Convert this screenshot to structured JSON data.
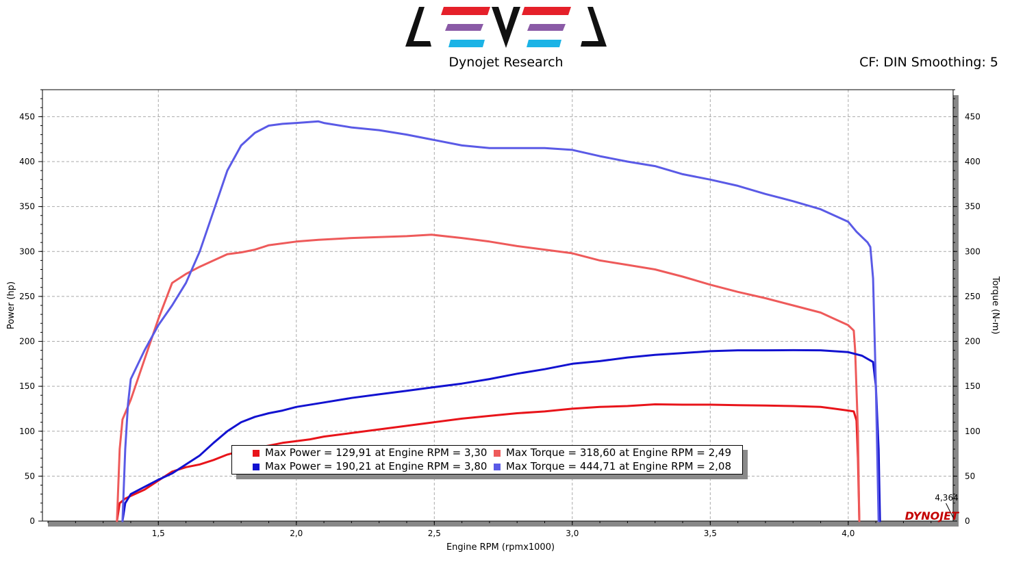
{
  "header": {
    "brand": "Dynojet Research",
    "settings": "CF: DIN Smoothing: 5"
  },
  "colors": {
    "run1": "#e8141a",
    "run1_torque": "#ee5a5a",
    "run2": "#1212d0",
    "run2_torque": "#5a5ae6",
    "grid": "#a9a9a9",
    "axis_shadow": "#888888"
  },
  "chart_data": {
    "type": "line",
    "xlabel": "Engine RPM (rpmx1000)",
    "ylabel_left": "Power (hp)",
    "ylabel_right": "Torque (N-m)",
    "xlim": [
      1.08,
      4.38
    ],
    "ylim": [
      0,
      480
    ],
    "x_ticks": [
      "1,5",
      "2,0",
      "2,5",
      "3,0",
      "3,5",
      "4,0"
    ],
    "x_tick_values": [
      1.5,
      2.0,
      2.5,
      3.0,
      3.5,
      4.0
    ],
    "y_ticks": [
      "0",
      "50",
      "100",
      "150",
      "200",
      "250",
      "300",
      "350",
      "400",
      "450"
    ],
    "y_tick_values": [
      0,
      50,
      100,
      150,
      200,
      250,
      300,
      350,
      400,
      450
    ],
    "grid": true,
    "cursor": {
      "label": "4,364",
      "x": 4.364
    },
    "series": [
      {
        "key": "run1_power",
        "color_key": "run1",
        "points": [
          [
            1.35,
            0
          ],
          [
            1.36,
            20
          ],
          [
            1.38,
            25
          ],
          [
            1.4,
            28
          ],
          [
            1.45,
            35
          ],
          [
            1.5,
            45
          ],
          [
            1.55,
            55
          ],
          [
            1.6,
            60
          ],
          [
            1.65,
            63
          ],
          [
            1.7,
            68
          ],
          [
            1.75,
            74
          ],
          [
            1.8,
            78
          ],
          [
            1.85,
            81
          ],
          [
            1.9,
            84
          ],
          [
            1.95,
            87
          ],
          [
            2.0,
            89
          ],
          [
            2.05,
            91
          ],
          [
            2.1,
            94
          ],
          [
            2.2,
            98
          ],
          [
            2.3,
            102
          ],
          [
            2.4,
            106
          ],
          [
            2.5,
            110
          ],
          [
            2.6,
            114
          ],
          [
            2.7,
            117
          ],
          [
            2.8,
            120
          ],
          [
            2.9,
            122
          ],
          [
            3.0,
            125
          ],
          [
            3.1,
            127
          ],
          [
            3.2,
            128
          ],
          [
            3.3,
            129.9
          ],
          [
            3.4,
            129.5
          ],
          [
            3.5,
            129.5
          ],
          [
            3.6,
            129
          ],
          [
            3.7,
            128.5
          ],
          [
            3.8,
            128
          ],
          [
            3.9,
            127
          ],
          [
            3.95,
            125
          ],
          [
            4.0,
            123
          ],
          [
            4.02,
            122
          ],
          [
            4.03,
            112
          ],
          [
            4.035,
            70
          ],
          [
            4.04,
            0
          ]
        ]
      },
      {
        "key": "run1_torque",
        "color_key": "run1_torque",
        "points": [
          [
            1.35,
            0
          ],
          [
            1.36,
            80
          ],
          [
            1.37,
            113
          ],
          [
            1.4,
            135
          ],
          [
            1.45,
            180
          ],
          [
            1.5,
            225
          ],
          [
            1.55,
            265
          ],
          [
            1.6,
            275
          ],
          [
            1.65,
            283
          ],
          [
            1.7,
            290
          ],
          [
            1.75,
            297
          ],
          [
            1.8,
            299
          ],
          [
            1.85,
            302
          ],
          [
            1.9,
            307
          ],
          [
            2.0,
            311
          ],
          [
            2.08,
            313
          ],
          [
            2.2,
            315
          ],
          [
            2.3,
            316
          ],
          [
            2.4,
            317
          ],
          [
            2.49,
            318.6
          ],
          [
            2.6,
            315
          ],
          [
            2.7,
            311
          ],
          [
            2.8,
            306
          ],
          [
            2.9,
            302
          ],
          [
            3.0,
            298
          ],
          [
            3.1,
            290
          ],
          [
            3.2,
            285
          ],
          [
            3.3,
            280
          ],
          [
            3.4,
            272
          ],
          [
            3.5,
            263
          ],
          [
            3.6,
            255
          ],
          [
            3.7,
            248
          ],
          [
            3.8,
            240
          ],
          [
            3.9,
            232
          ],
          [
            3.95,
            225
          ],
          [
            4.0,
            218
          ],
          [
            4.02,
            212
          ],
          [
            4.025,
            190
          ],
          [
            4.035,
            100
          ],
          [
            4.04,
            0
          ]
        ]
      },
      {
        "key": "run2_power",
        "color_key": "run2",
        "points": [
          [
            1.37,
            0
          ],
          [
            1.38,
            20
          ],
          [
            1.4,
            30
          ],
          [
            1.45,
            38
          ],
          [
            1.5,
            46
          ],
          [
            1.55,
            53
          ],
          [
            1.6,
            63
          ],
          [
            1.65,
            73
          ],
          [
            1.7,
            87
          ],
          [
            1.75,
            100
          ],
          [
            1.8,
            110
          ],
          [
            1.85,
            116
          ],
          [
            1.9,
            120
          ],
          [
            1.95,
            123
          ],
          [
            2.0,
            127
          ],
          [
            2.1,
            132
          ],
          [
            2.2,
            137
          ],
          [
            2.3,
            141
          ],
          [
            2.4,
            145
          ],
          [
            2.5,
            149
          ],
          [
            2.6,
            153
          ],
          [
            2.7,
            158
          ],
          [
            2.8,
            164
          ],
          [
            2.9,
            169
          ],
          [
            3.0,
            175
          ],
          [
            3.1,
            178
          ],
          [
            3.2,
            182
          ],
          [
            3.3,
            185
          ],
          [
            3.4,
            187
          ],
          [
            3.5,
            189
          ],
          [
            3.6,
            190
          ],
          [
            3.7,
            190
          ],
          [
            3.8,
            190.2
          ],
          [
            3.9,
            190
          ],
          [
            4.0,
            188
          ],
          [
            4.05,
            184
          ],
          [
            4.09,
            177
          ],
          [
            4.1,
            150
          ],
          [
            4.11,
            80
          ],
          [
            4.115,
            0
          ]
        ]
      },
      {
        "key": "run2_torque",
        "color_key": "run2_torque",
        "points": [
          [
            1.37,
            0
          ],
          [
            1.38,
            80
          ],
          [
            1.39,
            130
          ],
          [
            1.4,
            158
          ],
          [
            1.45,
            190
          ],
          [
            1.5,
            218
          ],
          [
            1.55,
            240
          ],
          [
            1.6,
            265
          ],
          [
            1.65,
            300
          ],
          [
            1.7,
            345
          ],
          [
            1.75,
            390
          ],
          [
            1.8,
            418
          ],
          [
            1.85,
            432
          ],
          [
            1.9,
            440
          ],
          [
            1.95,
            442
          ],
          [
            2.0,
            443
          ],
          [
            2.08,
            444.7
          ],
          [
            2.1,
            443
          ],
          [
            2.2,
            438
          ],
          [
            2.3,
            435
          ],
          [
            2.4,
            430
          ],
          [
            2.5,
            424
          ],
          [
            2.6,
            418
          ],
          [
            2.7,
            415
          ],
          [
            2.8,
            415
          ],
          [
            2.9,
            415
          ],
          [
            3.0,
            413
          ],
          [
            3.1,
            406
          ],
          [
            3.2,
            400
          ],
          [
            3.3,
            395
          ],
          [
            3.4,
            386
          ],
          [
            3.5,
            380
          ],
          [
            3.6,
            373
          ],
          [
            3.7,
            364
          ],
          [
            3.8,
            356
          ],
          [
            3.9,
            347
          ],
          [
            4.0,
            333
          ],
          [
            4.03,
            322
          ],
          [
            4.07,
            310
          ],
          [
            4.08,
            305
          ],
          [
            4.09,
            270
          ],
          [
            4.1,
            150
          ],
          [
            4.11,
            0
          ]
        ]
      }
    ]
  },
  "legend": {
    "entries": [
      {
        "color_key": "run1",
        "text": "Max Power = 129,91 at Engine RPM = 3,30"
      },
      {
        "color_key": "run1_torque",
        "text": "Max Torque = 318,60 at Engine RPM = 2,49"
      },
      {
        "color_key": "run2",
        "text": "Max Power = 190,21 at Engine RPM = 3,80"
      },
      {
        "color_key": "run2_torque",
        "text": "Max Torque = 444,71 at Engine RPM = 2,08"
      }
    ]
  },
  "watermark": "DYNOJET"
}
